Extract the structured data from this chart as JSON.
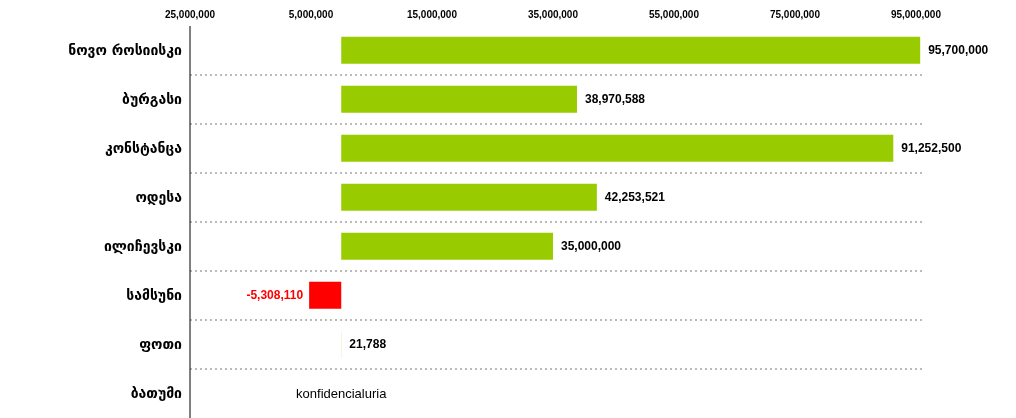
{
  "chart_data": {
    "type": "bar",
    "orientation": "horizontal",
    "categories": [
      "ნოვო როსიისკი",
      "ბურგასი",
      "კონსტანცა",
      "ოდესა",
      "ილიჩევსკი",
      "სამსუნი",
      "ფოთი",
      "ბათუმი"
    ],
    "values": [
      95700000,
      38970588,
      91252500,
      42253521,
      35000000,
      -5308110,
      21788,
      null
    ],
    "colors": [
      "#99cc00",
      "#99cc00",
      "#99cc00",
      "#99cc00",
      "#99cc00",
      "#ff0000",
      "#99cc00",
      null
    ],
    "value_labels": [
      "95,700,000",
      "38,970,588",
      "91,252,500",
      "42,253,521",
      "35,000,000",
      "-5,308,110",
      "21,788",
      null
    ],
    "xlim": [
      -25000000,
      96000000
    ],
    "xticks": [
      {
        "value": -25000000,
        "label": "25,000,000"
      },
      {
        "value": -5000000,
        "label": "5,000,000"
      },
      {
        "value": 15000000,
        "label": "15,000,000"
      },
      {
        "value": 35000000,
        "label": "35,000,000"
      },
      {
        "value": 55000000,
        "label": "55,000,000"
      },
      {
        "value": 75000000,
        "label": "75,000,000"
      },
      {
        "value": 95000000,
        "label": "95,000,000"
      }
    ],
    "grid": "y",
    "annotations": [
      "konfidencialuria"
    ]
  }
}
